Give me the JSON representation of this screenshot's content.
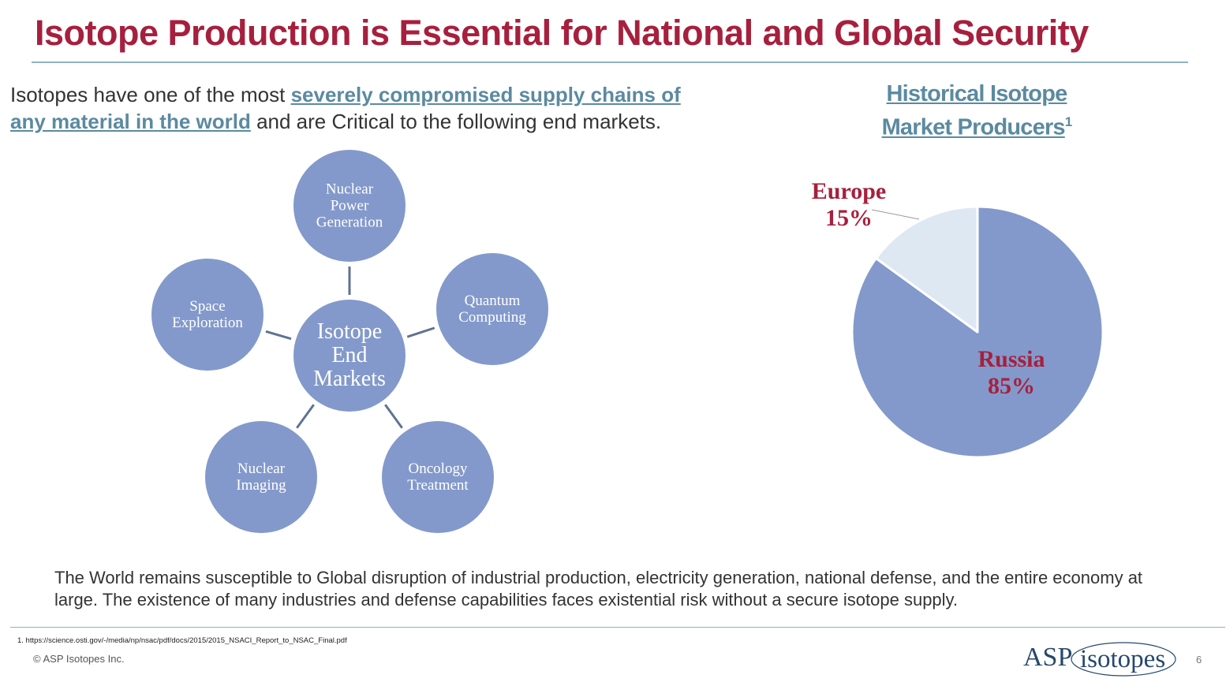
{
  "header": {
    "title": "Isotope Production is Essential for National and Global Security"
  },
  "intro": {
    "text_before": "Isotopes have one of the most ",
    "link_text": "severely compromised supply chains of any material in the world",
    "text_after": " and are Critical to the following end markets."
  },
  "diagram": {
    "center_lines": [
      "Isotope",
      "End",
      "Markets"
    ],
    "nodes": [
      {
        "lines": [
          "Nuclear",
          "Power",
          "Generation"
        ]
      },
      {
        "lines": [
          "Quantum",
          "Computing"
        ]
      },
      {
        "lines": [
          "Oncology",
          "Treatment"
        ]
      },
      {
        "lines": [
          "Nuclear",
          "Imaging"
        ]
      },
      {
        "lines": [
          "Space",
          "Exploration"
        ]
      }
    ],
    "colors": {
      "circle": "#8399cb",
      "connector": "#5f7391"
    }
  },
  "pie": {
    "title": "Historical Isotope Market Producers",
    "title_superscript": "1",
    "slices": [
      {
        "label": "Russia",
        "percent_label": "85%",
        "value": 85,
        "color": "#8399cb"
      },
      {
        "label": "Europe",
        "percent_label": "15%",
        "value": 15,
        "color": "#dde8f3"
      }
    ]
  },
  "closing": {
    "text": "The World remains susceptible to Global disruption of industrial production, electricity generation, national defense, and the entire economy at large. The existence of many industries and defense capabilities faces existential risk without a secure isotope supply."
  },
  "footer": {
    "footnote": "1. https://science.osti.gov/-/media/np/nsac/pdf/docs/2015/2015_NSACI_Report_to_NSAC_Final.pdf",
    "copyright": "© ASP Isotopes Inc.",
    "logo_asp": "ASP",
    "logo_isotopes": "isotopes",
    "page_number": "6"
  }
}
